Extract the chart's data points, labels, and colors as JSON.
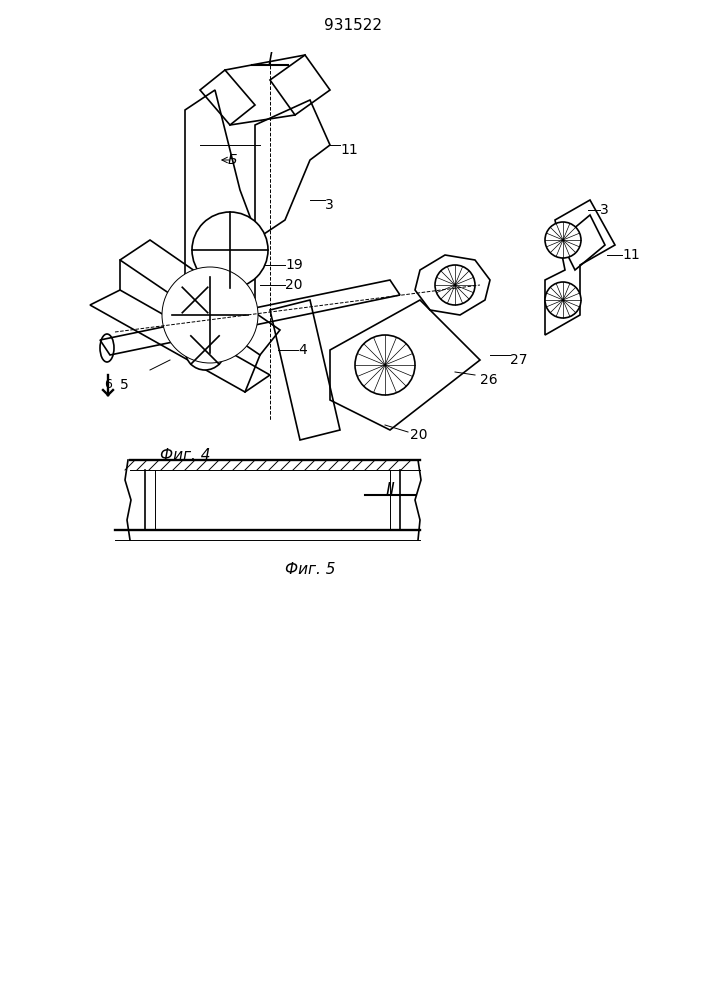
{
  "title": "931522",
  "fig4_label": "Фиг. 4",
  "fig5_label": "Фиг. 5",
  "bg_color": "#ffffff",
  "line_color": "#000000",
  "lw": 1.2,
  "thin_lw": 0.7
}
